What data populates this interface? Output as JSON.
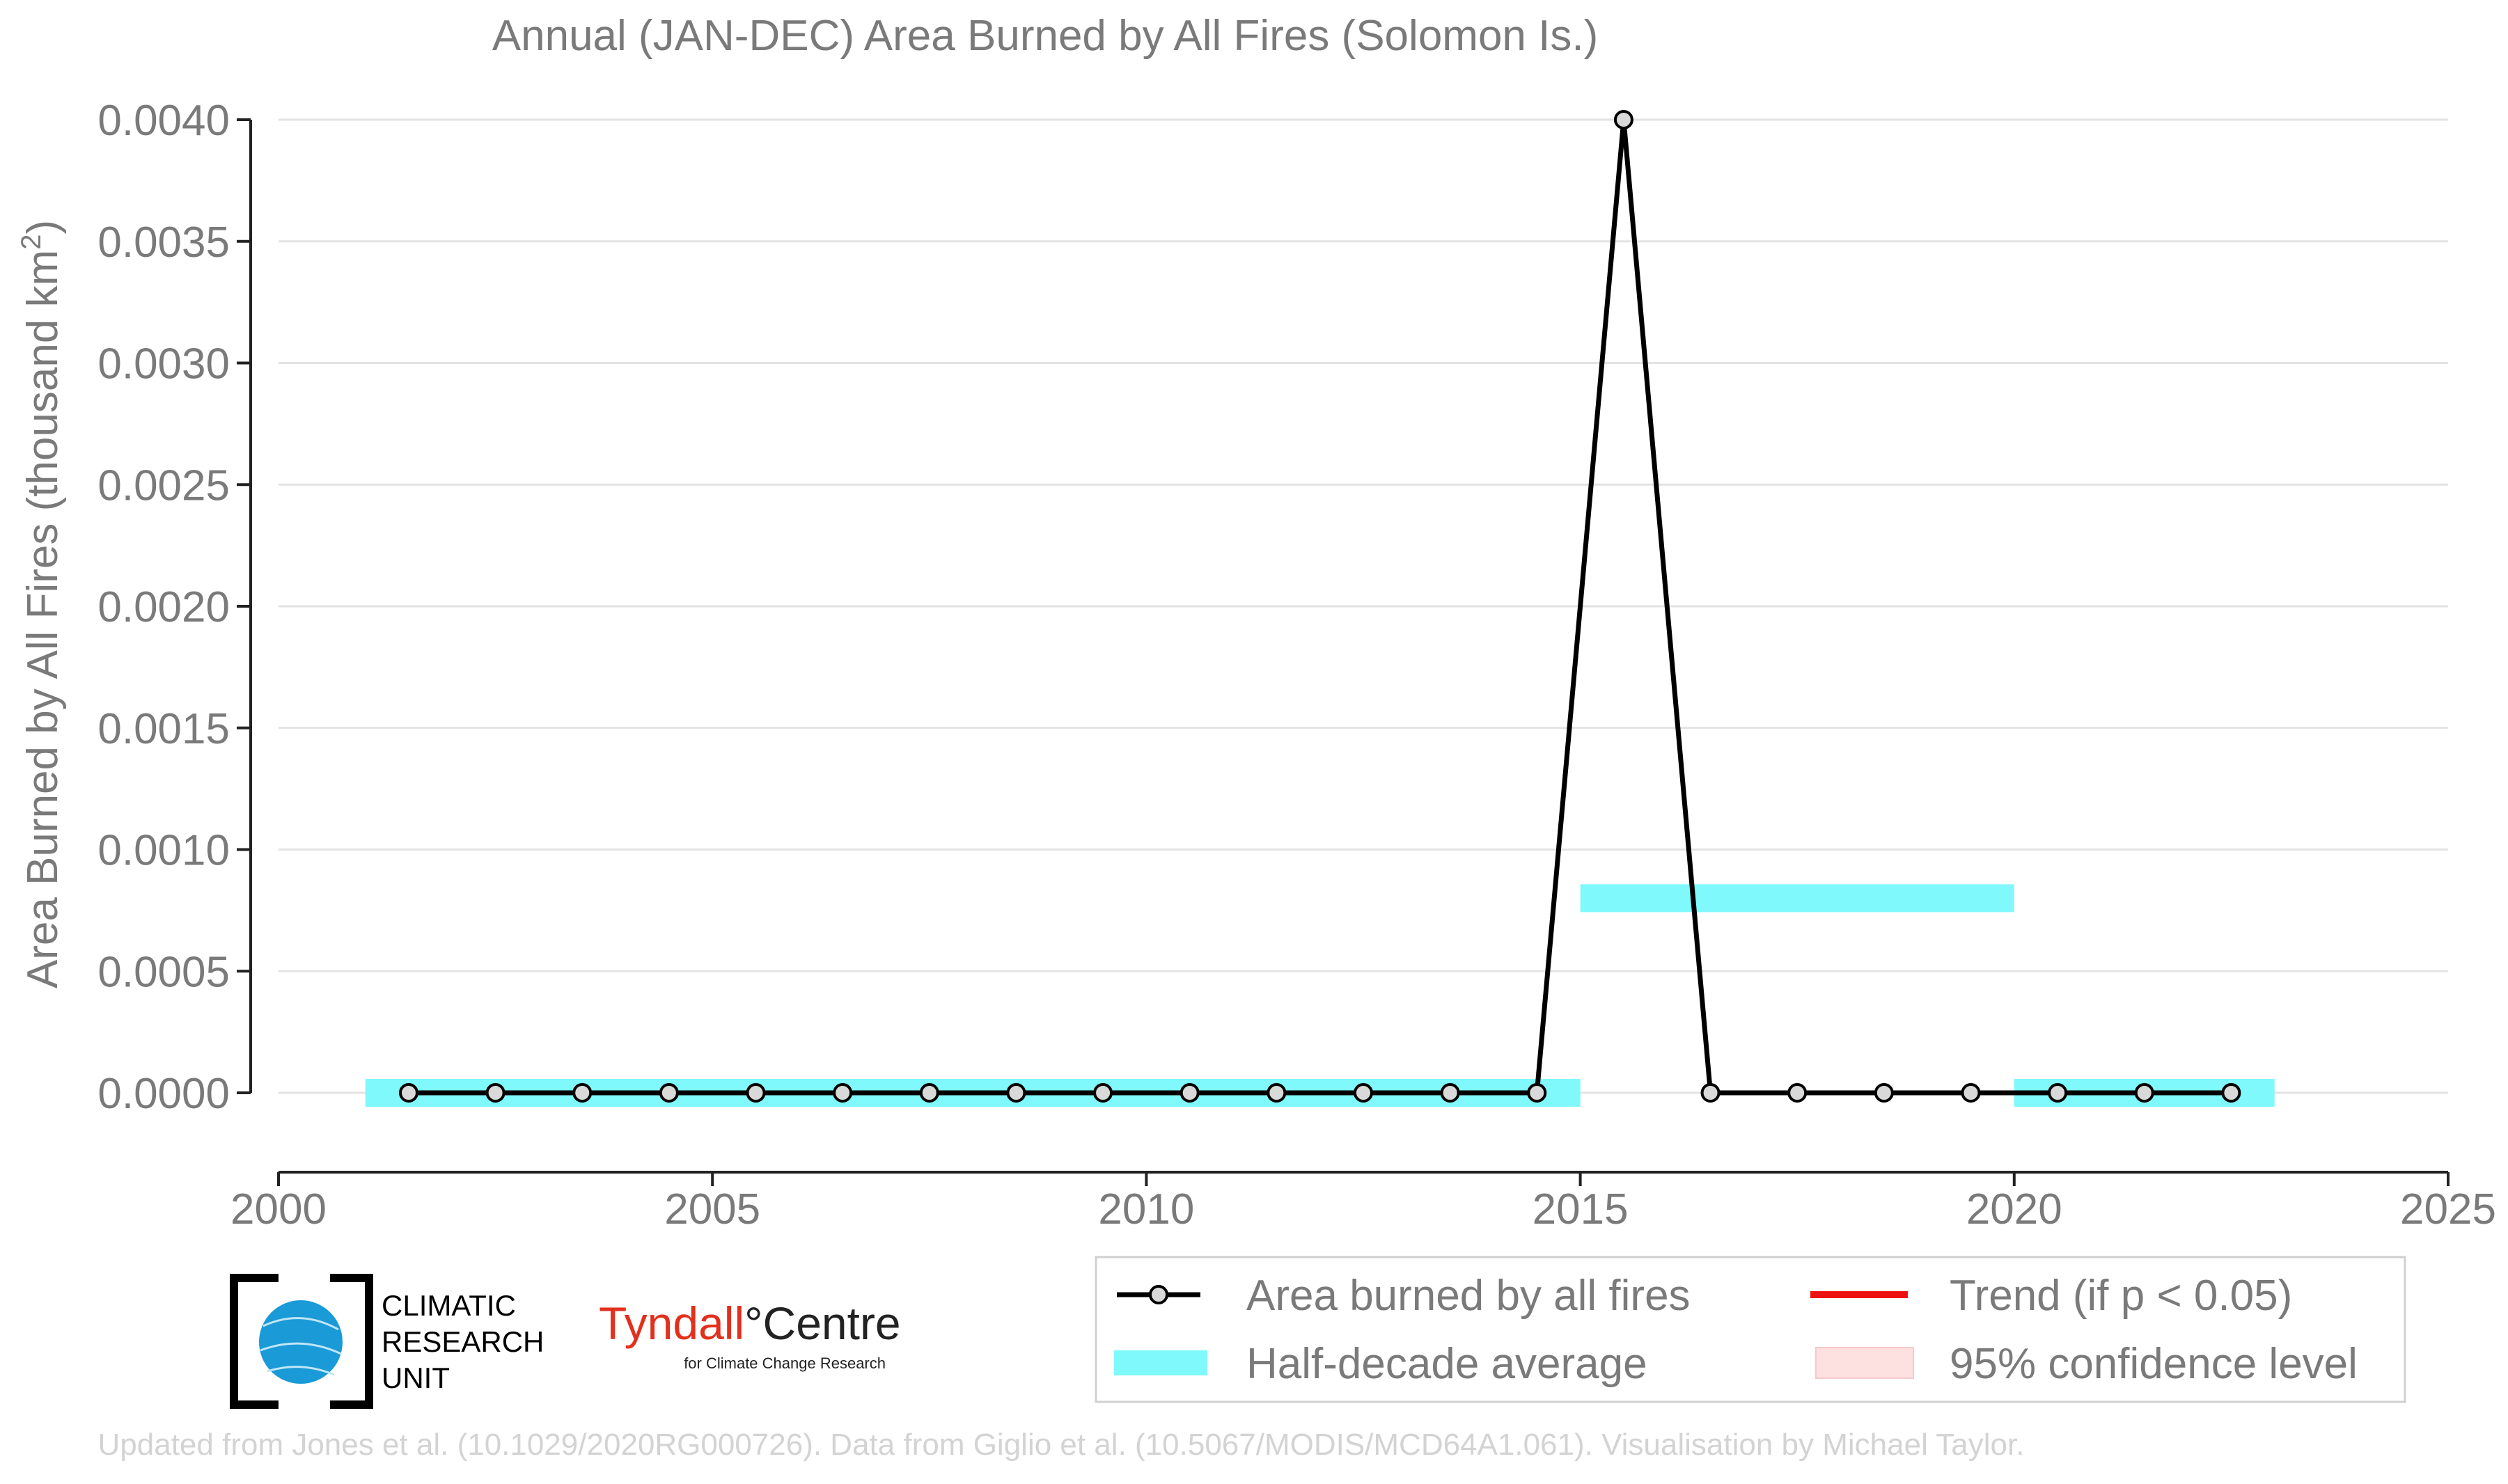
{
  "chart_data": {
    "type": "line",
    "title": "Annual (JAN-DEC) Area Burned by All Fires (Solomon Is.)",
    "xlabel": "",
    "ylabel": "Area Burned by All Fires (thousand km²)",
    "xlim": [
      2000,
      2025
    ],
    "ylim": [
      0,
      0.004
    ],
    "x_ticks": [
      2000,
      2005,
      2010,
      2015,
      2020,
      2025
    ],
    "y_ticks": [
      0,
      0.0005,
      0.001,
      0.0015,
      0.002,
      0.0025,
      0.003,
      0.0035,
      0.004
    ],
    "y_tick_labels": [
      "0.0000",
      "0.0005",
      "0.0010",
      "0.0015",
      "0.0020",
      "0.0025",
      "0.0030",
      "0.0035",
      "0.0040"
    ],
    "grid": "horizontal",
    "series": [
      {
        "name": "Area burned by all fires",
        "color": "#000000",
        "x": [
          2001.5,
          2002.5,
          2003.5,
          2004.5,
          2005.5,
          2006.5,
          2007.5,
          2008.5,
          2009.5,
          2010.5,
          2011.5,
          2012.5,
          2013.5,
          2014.5,
          2015.5,
          2016.5,
          2017.5,
          2018.5,
          2019.5,
          2020.5,
          2021.5,
          2022.5
        ],
        "values": [
          0,
          0,
          0,
          0,
          0,
          0,
          0,
          0,
          0,
          0,
          0,
          0,
          0,
          0,
          0.004,
          0,
          0,
          0,
          0,
          0,
          0,
          0
        ]
      }
    ],
    "half_decade_average": {
      "name": "Half-decade average",
      "color": "#7ff9fb",
      "segments": [
        {
          "x_start": 2001,
          "x_end": 2015,
          "value": 0
        },
        {
          "x_start": 2015,
          "x_end": 2020,
          "value": 0.0008
        },
        {
          "x_start": 2020,
          "x_end": 2023,
          "value": 0
        }
      ]
    },
    "legend": {
      "position": "bottom-right",
      "items": [
        {
          "label": "Area burned by all fires",
          "kind": "line-marker",
          "color": "#000000"
        },
        {
          "label": "Trend (if p < 0.05)",
          "kind": "line",
          "color": "#ee1111"
        },
        {
          "label": "Half-decade average",
          "kind": "band",
          "color": "#7ff9fb"
        },
        {
          "label": "95% confidence level",
          "kind": "band",
          "color": "#fde0e0"
        }
      ]
    }
  },
  "logos": {
    "cru": {
      "line1": "CLIMATIC",
      "line2": "RESEARCH",
      "line3": "UNIT"
    },
    "tyndall": {
      "main": "Tyndall",
      "degree": "°",
      "centre": "Centre",
      "sub": "for Climate Change Research"
    }
  },
  "footer": "Updated from Jones et al. (10.1029/2020RG000726). Data from Giglio et al. (10.5067/MODIS/MCD64A1.061). Visualisation by Michael Taylor.",
  "colors": {
    "text": "#7a7a7a",
    "grid": "#e3e3e3",
    "axis": "#222222",
    "footer": "#d3d3d3",
    "tyndall_red": "#e2301c",
    "cru_blue": "#1a9ad6"
  }
}
